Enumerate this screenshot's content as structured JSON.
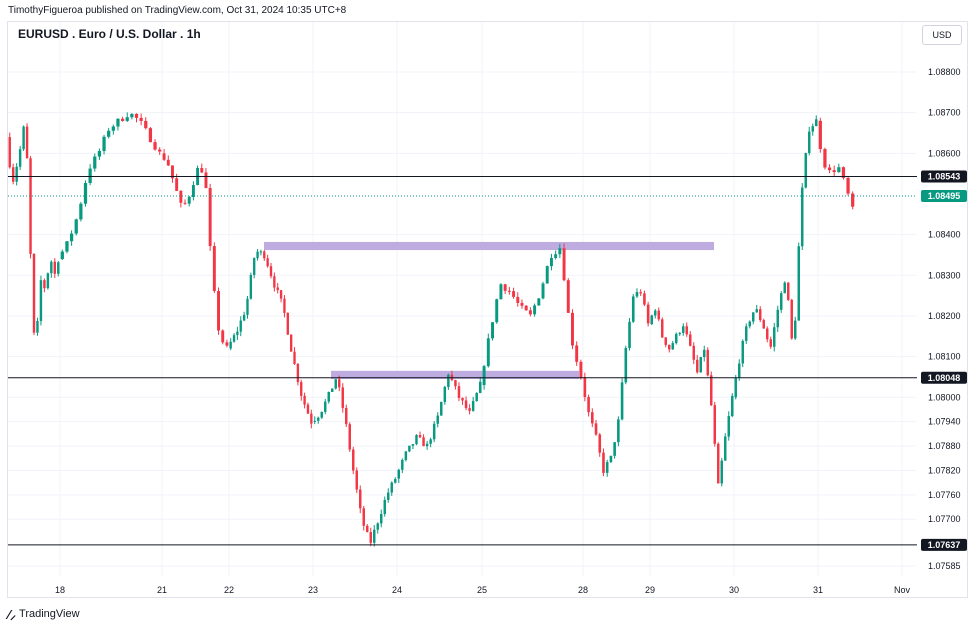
{
  "header": {
    "attribution": "TimothyFigueroa published on TradingView.com, Oct 31, 2024 10:35 UTC+8"
  },
  "symbol": {
    "title": "EURUSD . Euro / U.S. Dollar . 1h"
  },
  "currency": "USD",
  "footer": {
    "logo_icon": "tradingview-logo-icon",
    "brand": "TradingView"
  },
  "colors": {
    "up": "#089981",
    "down": "#f23645",
    "zone": "#b39ddb",
    "price_badge": "#089981"
  },
  "chart_data": {
    "type": "candlestick",
    "interval": "1h",
    "ylim": [
      1.07585,
      1.0888
    ],
    "y_ticks": [
      "1.08800",
      "1.08700",
      "1.08600",
      "1.08400",
      "1.08300",
      "1.08200",
      "1.08100",
      "1.08000",
      "1.07940",
      "1.07880",
      "1.07820",
      "1.07760",
      "1.07700",
      "1.07585"
    ],
    "x_ticks": [
      "18",
      "21",
      "22",
      "23",
      "24",
      "25",
      "28",
      "29",
      "30",
      "31",
      "Nov"
    ],
    "horizontal_lines": [
      {
        "price": 1.08543,
        "label": "1.08543"
      },
      {
        "price": 1.08048,
        "label": "1.08048"
      },
      {
        "price": 1.07637,
        "label": "1.07637"
      }
    ],
    "current_price": {
      "price": 1.08495,
      "label": "1.08495"
    },
    "zones": [
      {
        "from_date": "22",
        "to_date": "29",
        "price_low": 1.08362,
        "price_high": 1.08382
      },
      {
        "from_date": "23",
        "to_date": "28",
        "price_low": 1.08045,
        "price_high": 1.08065
      }
    ],
    "segments": [
      {
        "date": "17",
        "candles": 15,
        "path": [
          1.0864,
          1.0857,
          1.0853,
          1.0858,
          1.0862,
          1.0868,
          1.0852,
          1.082,
          1.081,
          1.083,
          1.0826,
          1.083,
          1.0834,
          1.083,
          1.0834
        ]
      },
      {
        "date": "18",
        "candles": 22,
        "path": [
          1.0834,
          1.0838,
          1.0845,
          1.0856,
          1.086,
          1.0866,
          1.0868,
          1.087,
          1.0868,
          1.0864,
          1.086
        ]
      },
      {
        "date": "21",
        "candles": 16,
        "path": [
          1.086,
          1.0858,
          1.0852,
          1.0846,
          1.085,
          1.0856,
          1.0856,
          1.083,
          1.0815,
          1.0812
        ]
      },
      {
        "date": "22",
        "candles": 25,
        "path": [
          1.0812,
          1.0816,
          1.0822,
          1.0836,
          1.0835,
          1.0828,
          1.0822,
          1.081,
          1.08,
          1.0794
        ]
      },
      {
        "date": "23",
        "candles": 24,
        "path": [
          1.0794,
          1.0796,
          1.08,
          1.0805,
          1.0795,
          1.0782,
          1.077,
          1.0764,
          1.077,
          1.0776,
          1.078
        ]
      },
      {
        "date": "24",
        "candles": 24,
        "path": [
          1.078,
          1.0786,
          1.079,
          1.0788,
          1.0795,
          1.0806,
          1.08,
          1.0796,
          1.0803
        ]
      },
      {
        "date": "25",
        "candles": 24,
        "path": [
          1.0803,
          1.0816,
          1.0828,
          1.0826,
          1.0822,
          1.082,
          1.0826,
          1.0835,
          1.0837,
          1.0815,
          1.0805
        ]
      },
      {
        "date": "28",
        "candles": 18,
        "path": [
          1.0805,
          1.0796,
          1.079,
          1.0782,
          1.0785,
          1.0794,
          1.0812,
          1.0825,
          1.0826,
          1.0818
        ]
      },
      {
        "date": "29",
        "candles": 24,
        "path": [
          1.0818,
          1.0822,
          1.0815,
          1.0812,
          1.0815,
          1.0818,
          1.0812,
          1.0806,
          1.0812,
          1.0798,
          1.0778,
          1.079,
          1.08
        ]
      },
      {
        "date": "30",
        "candles": 24,
        "path": [
          1.08,
          1.081,
          1.0818,
          1.0822,
          1.0818,
          1.0812,
          1.0822,
          1.083,
          1.081,
          1.0848,
          1.0866,
          1.0868
        ]
      },
      {
        "date": "31",
        "candles": 8,
        "path": [
          1.0868,
          1.0858,
          1.0855,
          1.0857,
          1.0852,
          1.0846
        ]
      }
    ]
  }
}
